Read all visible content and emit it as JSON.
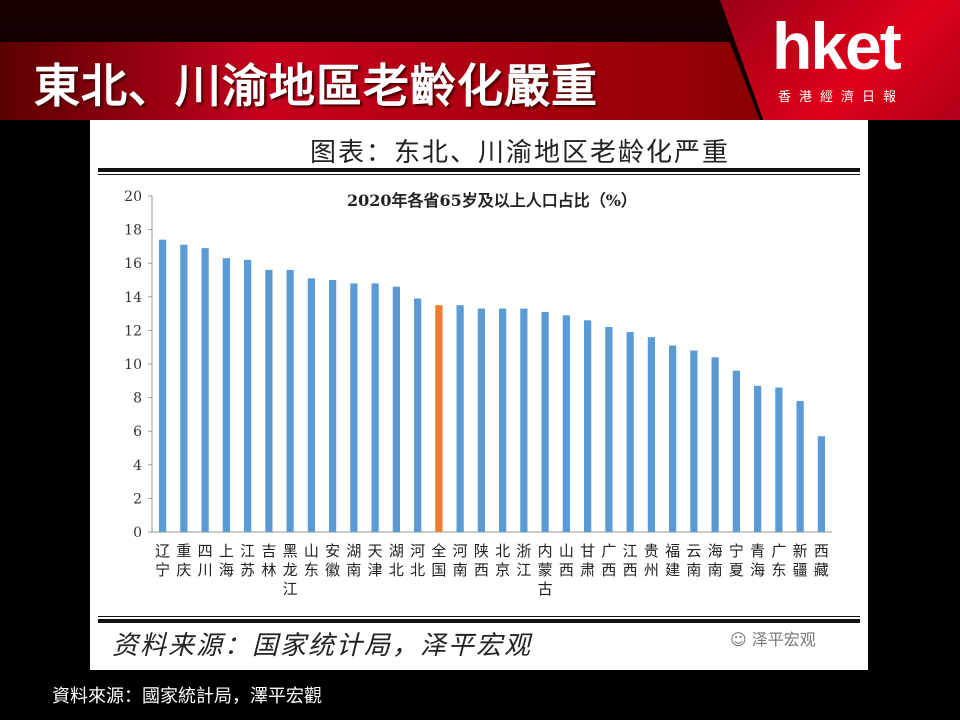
{
  "header": {
    "title": "東北、川渝地區老齡化嚴重",
    "logo_text": "hket",
    "logo_subtext": "香港經濟日報"
  },
  "card": {
    "title": "图表：东北、川渝地区老龄化严重",
    "source": "资料来源：国家统计局，泽平宏观",
    "watermark": "泽平宏观"
  },
  "footer": {
    "source": "資料來源：國家統計局，澤平宏觀"
  },
  "colors": {
    "bar": "#5b9bd5",
    "highlight": "#ed7d31",
    "brand_red": "#c8001e"
  },
  "chart_data": {
    "type": "bar",
    "title": "2020年各省65岁及以上人口占比（%）",
    "xlabel": "",
    "ylabel": "",
    "ylim": [
      0,
      20
    ],
    "yticks": [
      0,
      2,
      4,
      6,
      8,
      10,
      12,
      14,
      16,
      18,
      20
    ],
    "grid": false,
    "categories": [
      "辽宁",
      "重庆",
      "四川",
      "上海",
      "江苏",
      "吉林",
      "黑龙江",
      "山东",
      "安徽",
      "湖南",
      "天津",
      "湖北",
      "河北",
      "全国",
      "河南",
      "陕西",
      "北京",
      "浙江",
      "内蒙古",
      "山西",
      "甘肃",
      "广西",
      "江西",
      "贵州",
      "福建",
      "云南",
      "海南",
      "宁夏",
      "青海",
      "广东",
      "新疆",
      "西藏"
    ],
    "values": [
      17.4,
      17.1,
      16.9,
      16.3,
      16.2,
      15.6,
      15.6,
      15.1,
      15.0,
      14.8,
      14.8,
      14.6,
      13.9,
      13.5,
      13.5,
      13.3,
      13.3,
      13.3,
      13.1,
      12.9,
      12.6,
      12.2,
      11.9,
      11.6,
      11.1,
      10.8,
      10.4,
      9.6,
      8.7,
      8.6,
      7.8,
      5.7
    ],
    "highlight_category": "全国"
  }
}
